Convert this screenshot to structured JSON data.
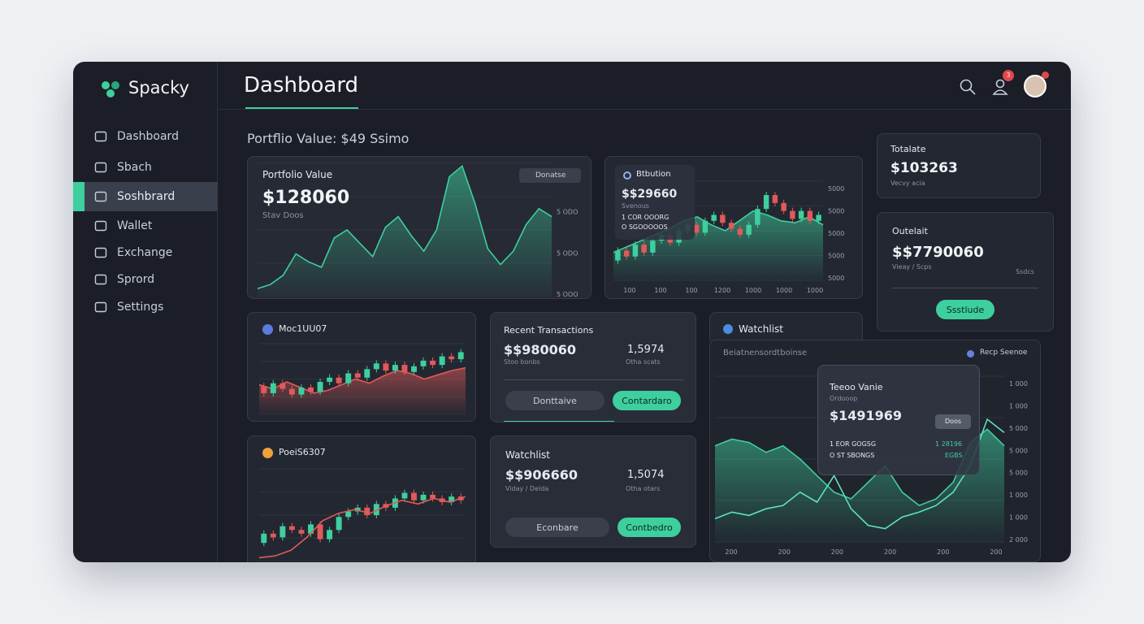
{
  "sidebar": {
    "brand": "Spacky",
    "active": 2,
    "nav": [
      "Dashboard",
      "Sbach",
      "Soshbrard",
      "Wallet",
      "Exchange",
      "Sprord",
      "Settings"
    ]
  },
  "header": {
    "title": "Dashboard",
    "badge": "3"
  },
  "subtitle": "Portflio Value: $49 Ssimo",
  "portfolio": {
    "title": "Portfolio Value",
    "value": "$128060",
    "sub": "Stav Doos",
    "dropdown": "Donatse"
  },
  "bitcoin": {
    "title": "Btbution",
    "value": "$$29660",
    "sub": "Svenous",
    "line1": "1 COR OOORG",
    "line2": "O SGOOOOOS"
  },
  "totalate": {
    "title": "Totalate",
    "value": "$103263",
    "sub": "Vecvy acia"
  },
  "outelait": {
    "title": "Outelait",
    "value": "$$7790060",
    "sub": "Vieay / Scps",
    "side": "Ssdcs",
    "button": "Ssstlude"
  },
  "moc": {
    "title": "Moc1UU07"
  },
  "poel": {
    "title": "PoeiS6307"
  },
  "recent": {
    "title": "Recent Transactions",
    "value": "$$980060",
    "sub": "Stoo bonbs",
    "amount": "1,5974",
    "amount_sub": "Otha scats",
    "button1": "Donttaive",
    "button2": "Contardaro"
  },
  "watch": {
    "title": "Watchlist",
    "value": "$$906660",
    "sub": "Viday / Delda",
    "amount": "1,5074",
    "amount_sub": "Otha otars",
    "button1": "Econbare",
    "button2": "Contbedro"
  },
  "watch2": {
    "title": "Watchlist",
    "header": "Beiatnensordtboinse",
    "legend": "Recp Seenoe"
  },
  "tooltip": {
    "title": "Teeoo Vanie",
    "sub": "Ordooop",
    "value": "$1491969",
    "chip": "Doos",
    "line1": "1 EOR GOGSG",
    "line2": "O ST SBONGS",
    "value2": "1 28196",
    "value3": "EGBS"
  },
  "charts": {
    "portfolio": {
      "ylim": [
        0,
        100
      ],
      "ylabels": [
        "S 600",
        "5 ODO",
        "5 ODO",
        "5 OOO"
      ],
      "area": [
        6,
        9,
        16,
        32,
        26,
        22,
        44,
        50,
        40,
        30,
        52,
        60,
        46,
        34,
        50,
        90,
        98,
        70,
        36,
        24,
        34,
        54,
        66,
        60
      ],
      "area_color": "#3ecf9e"
    },
    "bitcoin": {
      "ylim": [
        0,
        100
      ],
      "xlabels": [
        "100",
        "100",
        "100",
        "1200",
        "1000",
        "1000",
        "1000"
      ],
      "ylabels": [
        "5000",
        "5000",
        "5000",
        "5000",
        "5000"
      ],
      "area": [
        28,
        34,
        40,
        46,
        52,
        60,
        64,
        56,
        50,
        60,
        70,
        66,
        60,
        58,
        64,
        56
      ],
      "area_color": "#3ecf9e",
      "candles": [
        [
          20,
          30
        ],
        [
          30,
          24
        ],
        [
          24,
          36
        ],
        [
          36,
          28
        ],
        [
          28,
          40
        ],
        [
          40,
          46
        ],
        [
          46,
          38
        ],
        [
          38,
          50
        ],
        [
          50,
          56
        ],
        [
          56,
          48
        ],
        [
          48,
          60
        ],
        [
          60,
          66
        ],
        [
          66,
          58
        ],
        [
          58,
          52
        ],
        [
          52,
          46
        ],
        [
          46,
          56
        ],
        [
          56,
          72
        ],
        [
          72,
          86
        ],
        [
          86,
          78
        ],
        [
          78,
          70
        ],
        [
          70,
          62
        ],
        [
          62,
          70
        ],
        [
          70,
          60
        ],
        [
          60,
          66
        ]
      ]
    },
    "moc": {
      "ylim": [
        0,
        100
      ],
      "area": [
        42,
        36,
        46,
        38,
        30,
        34,
        42,
        50,
        44,
        54,
        62,
        58,
        50,
        56,
        62,
        66
      ],
      "area_color": "#e05a5a",
      "candles": [
        [
          40,
          30
        ],
        [
          30,
          44
        ],
        [
          44,
          36
        ],
        [
          36,
          28
        ],
        [
          28,
          38
        ],
        [
          38,
          32
        ],
        [
          32,
          46
        ],
        [
          46,
          52
        ],
        [
          52,
          44
        ],
        [
          44,
          58
        ],
        [
          58,
          52
        ],
        [
          52,
          64
        ],
        [
          64,
          72
        ],
        [
          72,
          62
        ],
        [
          62,
          70
        ],
        [
          70,
          60
        ],
        [
          60,
          68
        ],
        [
          68,
          76
        ],
        [
          76,
          70
        ],
        [
          70,
          82
        ],
        [
          82,
          78
        ],
        [
          78,
          88
        ]
      ]
    },
    "poel": {
      "ylim": [
        0,
        100
      ],
      "line": [
        4,
        6,
        12,
        26,
        44,
        52,
        56,
        52,
        60,
        66,
        62,
        68,
        64,
        70
      ],
      "line_color": "#e05a5a",
      "candles": [
        [
          20,
          30
        ],
        [
          30,
          26
        ],
        [
          26,
          38
        ],
        [
          38,
          34
        ],
        [
          34,
          30
        ],
        [
          30,
          40
        ],
        [
          40,
          24
        ],
        [
          24,
          34
        ],
        [
          34,
          48
        ],
        [
          48,
          54
        ],
        [
          54,
          58
        ],
        [
          58,
          50
        ],
        [
          50,
          62
        ],
        [
          62,
          58
        ],
        [
          58,
          68
        ],
        [
          68,
          74
        ],
        [
          74,
          66
        ],
        [
          66,
          72
        ],
        [
          72,
          68
        ],
        [
          68,
          64
        ],
        [
          64,
          70
        ],
        [
          70,
          66
        ]
      ]
    },
    "big": {
      "ylim": [
        0,
        100
      ],
      "xlabels": [
        "200",
        "200",
        "200",
        "200",
        "200",
        "200"
      ],
      "ylabels": [
        "1 000",
        "1 000",
        "5 000",
        "5 000",
        "5 000",
        "1 000",
        "1 000",
        "2 000"
      ],
      "area": [
        58,
        62,
        60,
        54,
        58,
        50,
        40,
        30,
        26,
        36,
        46,
        30,
        22,
        26,
        36,
        60,
        68,
        58
      ],
      "area_color": "#3ecf9e",
      "line": [
        14,
        18,
        16,
        20,
        22,
        30,
        24,
        40,
        20,
        10,
        8,
        15,
        18,
        22,
        30,
        46,
        74,
        66
      ],
      "line_color": "#5be3c0"
    }
  }
}
